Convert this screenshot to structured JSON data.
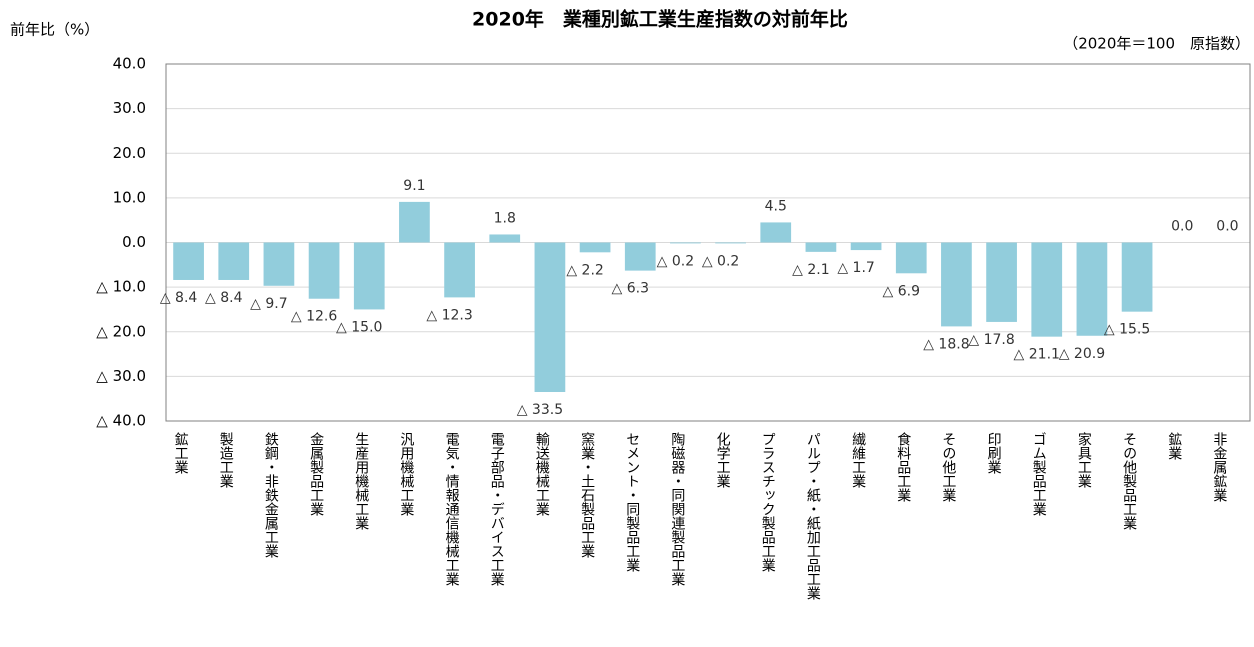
{
  "chart_data": {
    "type": "bar",
    "title": "2020年　業種別鉱工業生産指数の対前年比",
    "subtitle": "（2020年＝100　原指数）",
    "y_label": "前年比（%）",
    "categories": [
      "鉱工業",
      "製造工業",
      "鉄鋼・非鉄金属工業",
      "金属製品工業",
      "生産用機械工業",
      "汎用機械工業",
      "電気・情報通信機械工業",
      "電子部品・デバイス工業",
      "輸送機械工業",
      "窯業・土石製品工業",
      "セメント・同製品工業",
      "陶磁器・同関連製品工業",
      "化学工業",
      "プラスチック製品工業",
      "パルプ・紙・紙加工品工業",
      "繊維工業",
      "食料品工業",
      "その他工業",
      "印刷業",
      "ゴム製品工業",
      "家具工業",
      "その他製品工業",
      "鉱業",
      "非金属鉱業"
    ],
    "values": [
      -8.4,
      -8.4,
      -9.7,
      -12.6,
      -15.0,
      9.1,
      -12.3,
      1.8,
      -33.5,
      -2.2,
      -6.3,
      -0.2,
      -0.2,
      4.5,
      -2.1,
      -1.7,
      -6.9,
      -18.8,
      -17.8,
      -21.1,
      -20.9,
      -15.5,
      0.0,
      0.0
    ],
    "value_labels": [
      "△ 8.4",
      "△ 8.4",
      "△ 9.7",
      "△ 12.6",
      "△ 15.0",
      "9.1",
      "△ 12.3",
      "1.8",
      "△ 33.5",
      "△ 2.2",
      "△ 6.3",
      "△ 0.2",
      "△ 0.2",
      "4.5",
      "△ 2.1",
      "△ 1.7",
      "△ 6.9",
      "△ 18.8",
      "△ 17.8",
      "△ 21.1",
      "△ 20.9",
      "△ 15.5",
      "0.0",
      "0.0"
    ],
    "color": "#92cddc",
    "ylim": [
      -40,
      40
    ],
    "yticks": [
      {
        "value": -40,
        "label": "△ 40.0"
      },
      {
        "value": -30,
        "label": "△ 30.0"
      },
      {
        "value": -20,
        "label": "△ 20.0"
      },
      {
        "value": -10,
        "label": "△ 10.0"
      },
      {
        "value": 0,
        "label": "0.0"
      },
      {
        "value": 10,
        "label": "10.0"
      },
      {
        "value": 20,
        "label": "20.0"
      },
      {
        "value": 30,
        "label": "30.0"
      },
      {
        "value": 40,
        "label": "40.0"
      }
    ],
    "grid": true
  }
}
